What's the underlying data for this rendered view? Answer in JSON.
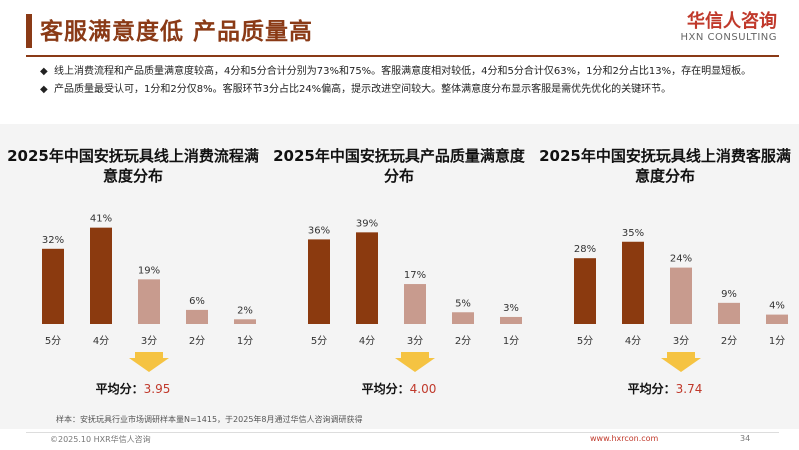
{
  "header": {
    "title": "客服满意度低 产品质量高",
    "logo_cn": "华信人咨询",
    "logo_en": "HXN CONSULTING"
  },
  "bullets": [
    "线上消费流程和产品质量满意度较高，4分和5分合计分别为73%和75%。客服满意度相对较低，4分和5分合计仅63%，1分和2分占比13%，存在明显短板。",
    "产品质量最受认可，1分和2分仅8%。客服环节3分占比24%偏高，提示改进空间较大。整体满意度分布显示客服是需优先优化的关键环节。"
  ],
  "bullet_mark": "◆",
  "colors": {
    "dark": "#8b3a0f",
    "light": "#c89b8e",
    "arrow": "#f5c342",
    "accent": "#c0392b"
  },
  "chart_data": [
    {
      "type": "bar",
      "title": "2025年中国安抚玩具线上消费流程满意度分布",
      "categories": [
        "5分",
        "4分",
        "3分",
        "2分",
        "1分"
      ],
      "values": [
        32,
        41,
        19,
        6,
        2
      ],
      "value_labels": [
        "32%",
        "41%",
        "19%",
        "6%",
        "2%"
      ],
      "avg_label": "平均分：",
      "avg_value": "3.95"
    },
    {
      "type": "bar",
      "title": "2025年中国安抚玩具产品质量满意度分布",
      "categories": [
        "5分",
        "4分",
        "3分",
        "2分",
        "1分"
      ],
      "values": [
        36,
        39,
        17,
        5,
        3
      ],
      "value_labels": [
        "36%",
        "39%",
        "17%",
        "5%",
        "3%"
      ],
      "avg_label": "平均分：",
      "avg_value": "4.00"
    },
    {
      "type": "bar",
      "title": "2025年中国安抚玩具线上消费客服满意度分布",
      "categories": [
        "5分",
        "4分",
        "3分",
        "2分",
        "1分"
      ],
      "values": [
        28,
        35,
        24,
        9,
        4
      ],
      "value_labels": [
        "28%",
        "35%",
        "24%",
        "9%",
        "4%"
      ],
      "avg_label": "平均分：",
      "avg_value": "3.74"
    }
  ],
  "source": "样本：安抚玩具行业市场调研样本量N=1415，于2025年8月通过华信人咨询调研获得",
  "footer": {
    "copyright": "©2025.10 HXR华信人咨询",
    "url": "www.hxrcon.com",
    "page": "34"
  }
}
